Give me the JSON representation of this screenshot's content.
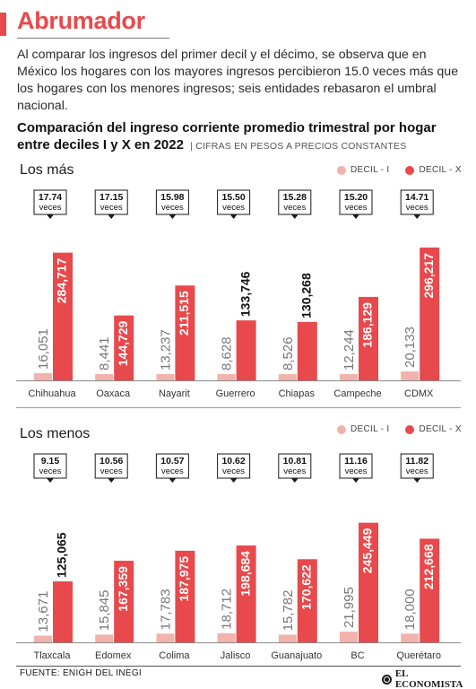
{
  "headline": "Abrumador",
  "intro": "Al comparar los ingresos del primer decil y el décimo, se observa que en México los hogares con los mayores ingresos percibieron 15.0 veces más que los hogares con los menores ingresos; seis entidades rebasaron el umbral nacional.",
  "chart_title": "Comparación del ingreso corriente promedio trimestral por hogar entre deciles I y X en 2022",
  "chart_subtitle": "CIFRAS EN PESOS A PRECIOS CONSTANTES",
  "legend": {
    "decil_i": "DECIL - I",
    "decil_x": "DECIL - X"
  },
  "colors": {
    "accent": "#e8494c",
    "decil_i": "#f2b3ad",
    "decil_x": "#e8494c"
  },
  "times_unit": "veces",
  "source": "FUENTE: ENIGH DEL INEGI",
  "brand": "EL ECONOMISTA",
  "chart_data": [
    {
      "type": "bar",
      "title": "Los más",
      "categories": [
        "Chihuahua",
        "Oaxaca",
        "Nayarit",
        "Guerrero",
        "Chiapas",
        "Campeche",
        "CDMX"
      ],
      "series": [
        {
          "name": "DECIL - I",
          "values": [
            16051,
            8441,
            13237,
            8628,
            8526,
            12244,
            20133
          ],
          "labels": [
            "16,051",
            "8,441",
            "13,237",
            "8,628",
            "8,526",
            "12,244",
            "20,133"
          ]
        },
        {
          "name": "DECIL - X",
          "values": [
            284717,
            144729,
            211515,
            133746,
            130268,
            186129,
            296217
          ],
          "labels": [
            "284,717",
            "144,729",
            "211,515",
            "133,746",
            "130,268",
            "186,129",
            "296,217"
          ]
        }
      ],
      "ratios": [
        "17.74",
        "17.15",
        "15.98",
        "15.50",
        "15.28",
        "15.20",
        "14.71"
      ],
      "ylim": [
        0,
        300000
      ]
    },
    {
      "type": "bar",
      "title": "Los menos",
      "categories": [
        "Tlaxcala",
        "Edomex",
        "Colima",
        "Jalisco",
        "Guanajuato",
        "BC",
        "Querétaro"
      ],
      "series": [
        {
          "name": "DECIL - I",
          "values": [
            13671,
            15845,
            17783,
            18712,
            15782,
            21995,
            18000
          ],
          "labels": [
            "13,671",
            "15,845",
            "17,783",
            "18,712",
            "15,782",
            "21,995",
            "18,000"
          ]
        },
        {
          "name": "DECIL - X",
          "values": [
            125065,
            167359,
            187975,
            198684,
            170622,
            245449,
            212668
          ],
          "labels": [
            "125,065",
            "167,359",
            "187,975",
            "198,684",
            "170,622",
            "245,449",
            "212,668"
          ]
        }
      ],
      "ratios": [
        "9.15",
        "10.56",
        "10.57",
        "10.62",
        "10.81",
        "11.16",
        "11.82"
      ],
      "ylim": [
        0,
        300000
      ]
    }
  ]
}
